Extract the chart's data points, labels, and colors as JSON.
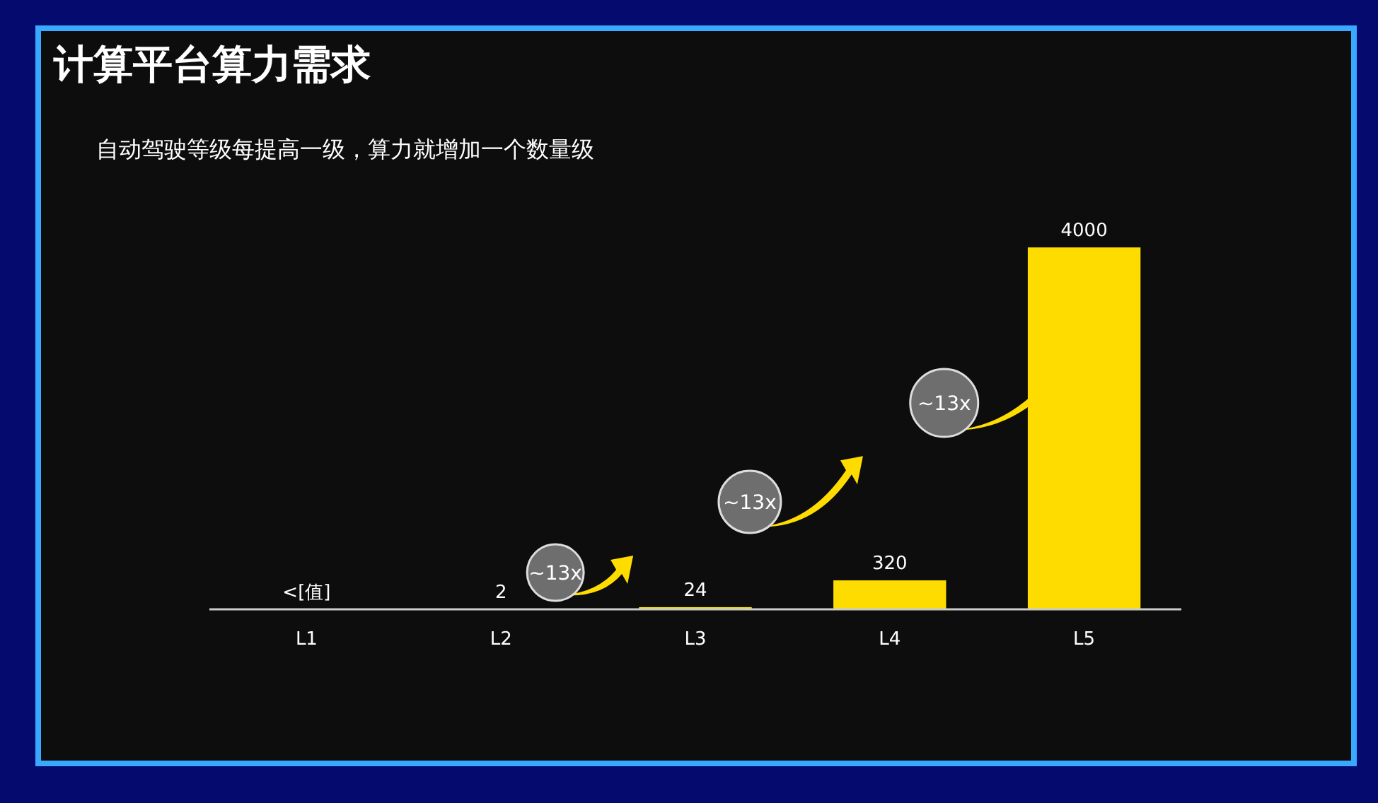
{
  "chart_data": {
    "type": "bar",
    "title": "计算平台算力需求",
    "subtitle": "自动驾驶等级每提高一级，算力就增加一个数量级",
    "categories": [
      "L1",
      "L2",
      "L3",
      "L4",
      "L5"
    ],
    "values": [
      null,
      2,
      24,
      320,
      4000
    ],
    "value_labels": [
      "<[值]",
      "2",
      "24",
      "320",
      "4000"
    ],
    "color": "#ffdc00",
    "annotations": [
      "~13x",
      "~13x",
      "~13x"
    ]
  }
}
